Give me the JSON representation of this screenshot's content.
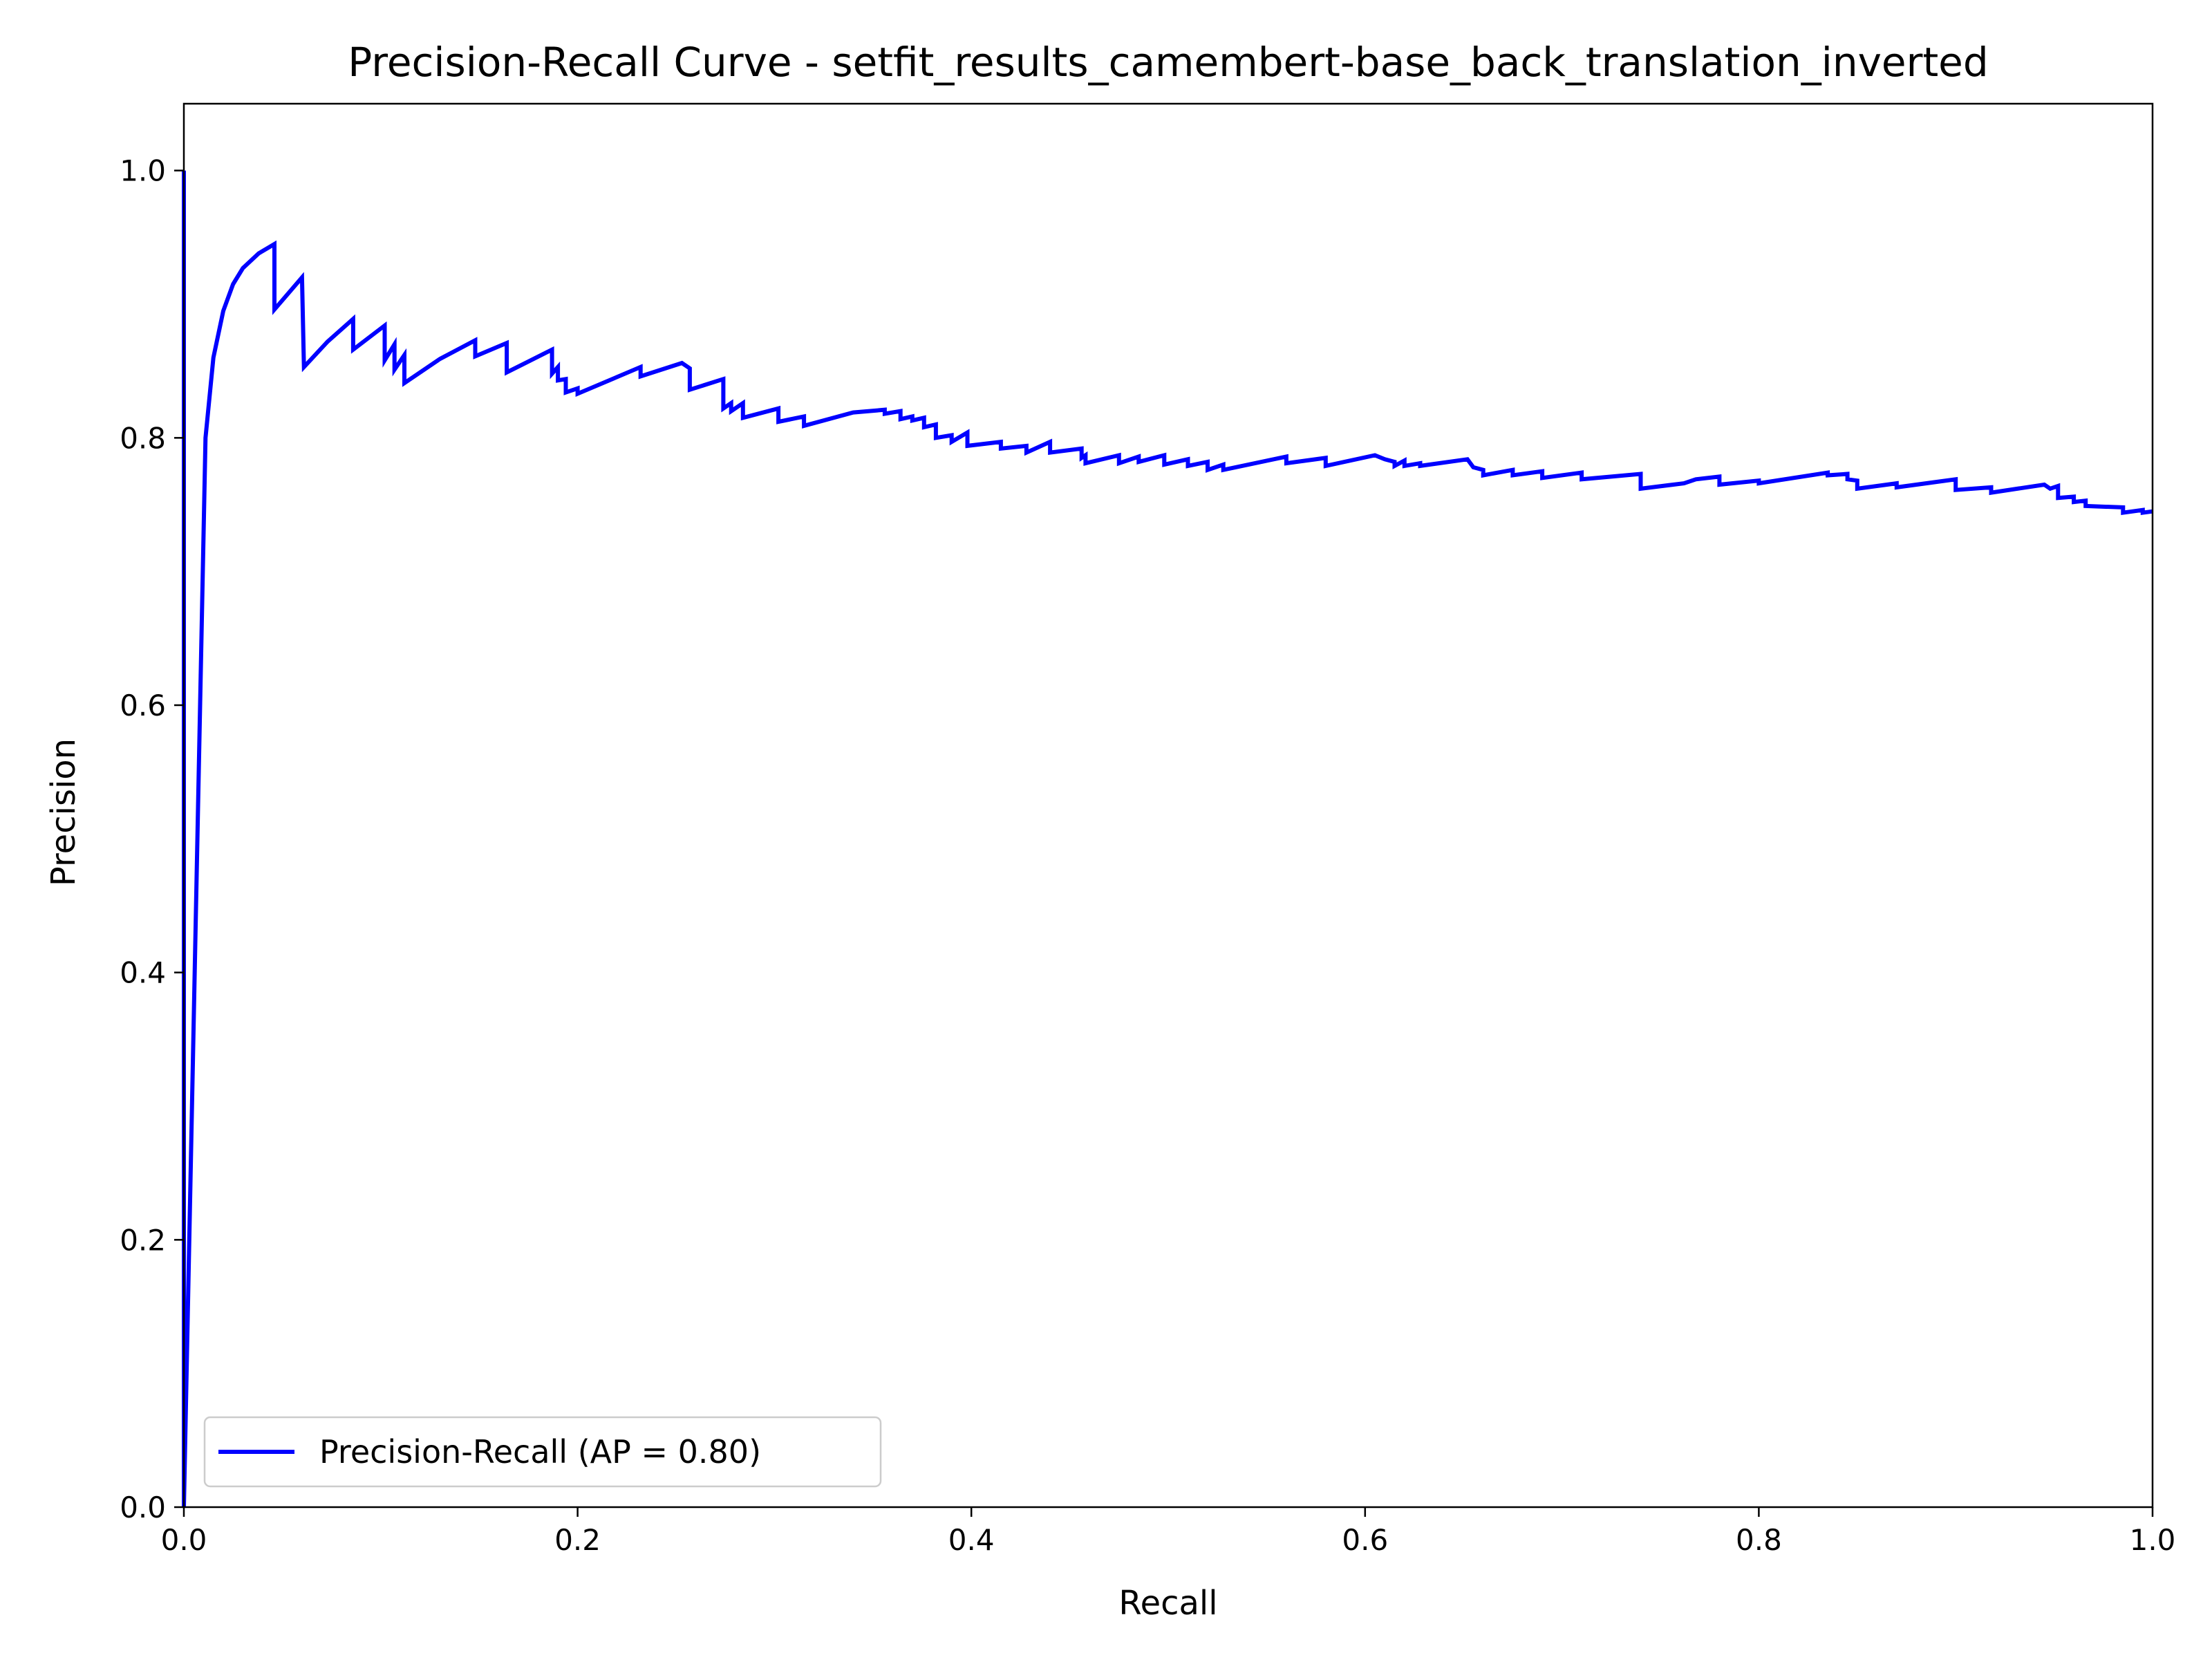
{
  "chart_data": {
    "type": "line",
    "title": "Precision-Recall Curve - setfit_results_camembert-base_back_translation_inverted",
    "xlabel": "Recall",
    "ylabel": "Precision",
    "xlim": [
      0.0,
      1.0
    ],
    "ylim": [
      0.0,
      1.05
    ],
    "grid": false,
    "legend_position": "lower left",
    "x_ticks": [
      "0.0",
      "0.2",
      "0.4",
      "0.6",
      "0.8",
      "1.0"
    ],
    "y_ticks": [
      "0.0",
      "0.2",
      "0.4",
      "0.6",
      "0.8",
      "1.0"
    ],
    "series": [
      {
        "name": "Precision-Recall (AP = 0.80)",
        "color": "#0000ff",
        "x": [
          0.0,
          0.0,
          0.0,
          0.011,
          0.015,
          0.02,
          0.025,
          0.03,
          0.038,
          0.046,
          0.046,
          0.06,
          0.061,
          0.073,
          0.086,
          0.086,
          0.102,
          0.102,
          0.107,
          0.107,
          0.112,
          0.112,
          0.13,
          0.148,
          0.148,
          0.164,
          0.164,
          0.187,
          0.187,
          0.19,
          0.19,
          0.194,
          0.194,
          0.2,
          0.2,
          0.232,
          0.232,
          0.253,
          0.257,
          0.257,
          0.274,
          0.274,
          0.278,
          0.278,
          0.284,
          0.284,
          0.302,
          0.302,
          0.315,
          0.315,
          0.34,
          0.356,
          0.356,
          0.364,
          0.364,
          0.37,
          0.37,
          0.376,
          0.376,
          0.382,
          0.382,
          0.39,
          0.39,
          0.398,
          0.398,
          0.415,
          0.415,
          0.428,
          0.428,
          0.44,
          0.44,
          0.456,
          0.456,
          0.458,
          0.458,
          0.475,
          0.475,
          0.485,
          0.485,
          0.498,
          0.498,
          0.51,
          0.51,
          0.52,
          0.52,
          0.528,
          0.528,
          0.56,
          0.56,
          0.58,
          0.58,
          0.605,
          0.61,
          0.615,
          0.615,
          0.62,
          0.62,
          0.628,
          0.628,
          0.652,
          0.655,
          0.66,
          0.66,
          0.675,
          0.675,
          0.69,
          0.69,
          0.71,
          0.71,
          0.74,
          0.74,
          0.762,
          0.768,
          0.78,
          0.78,
          0.8,
          0.8,
          0.835,
          0.835,
          0.845,
          0.845,
          0.85,
          0.85,
          0.87,
          0.87,
          0.9,
          0.9,
          0.918,
          0.918,
          0.945,
          0.948,
          0.952,
          0.952,
          0.96,
          0.96,
          0.966,
          0.966,
          0.985,
          0.985,
          0.995,
          0.995,
          1.0
        ],
        "y": [
          0.0,
          1.0,
          0.0,
          0.8,
          0.86,
          0.895,
          0.915,
          0.927,
          0.938,
          0.945,
          0.896,
          0.92,
          0.853,
          0.872,
          0.889,
          0.866,
          0.884,
          0.858,
          0.87,
          0.851,
          0.862,
          0.841,
          0.859,
          0.873,
          0.861,
          0.871,
          0.849,
          0.866,
          0.848,
          0.853,
          0.843,
          0.844,
          0.834,
          0.837,
          0.833,
          0.853,
          0.846,
          0.856,
          0.852,
          0.836,
          0.844,
          0.822,
          0.826,
          0.82,
          0.826,
          0.815,
          0.822,
          0.812,
          0.816,
          0.809,
          0.819,
          0.821,
          0.818,
          0.82,
          0.814,
          0.816,
          0.813,
          0.815,
          0.808,
          0.81,
          0.8,
          0.802,
          0.797,
          0.804,
          0.794,
          0.797,
          0.792,
          0.794,
          0.789,
          0.797,
          0.789,
          0.792,
          0.785,
          0.787,
          0.781,
          0.787,
          0.781,
          0.786,
          0.782,
          0.787,
          0.78,
          0.784,
          0.779,
          0.782,
          0.776,
          0.78,
          0.776,
          0.786,
          0.781,
          0.785,
          0.779,
          0.787,
          0.784,
          0.782,
          0.779,
          0.783,
          0.779,
          0.781,
          0.779,
          0.784,
          0.778,
          0.776,
          0.772,
          0.776,
          0.772,
          0.775,
          0.77,
          0.774,
          0.769,
          0.773,
          0.762,
          0.766,
          0.769,
          0.771,
          0.765,
          0.768,
          0.766,
          0.774,
          0.772,
          0.773,
          0.769,
          0.768,
          0.762,
          0.766,
          0.763,
          0.769,
          0.761,
          0.763,
          0.759,
          0.765,
          0.762,
          0.764,
          0.755,
          0.756,
          0.752,
          0.753,
          0.749,
          0.748,
          0.744,
          0.746,
          0.744,
          0.745
        ]
      }
    ]
  }
}
